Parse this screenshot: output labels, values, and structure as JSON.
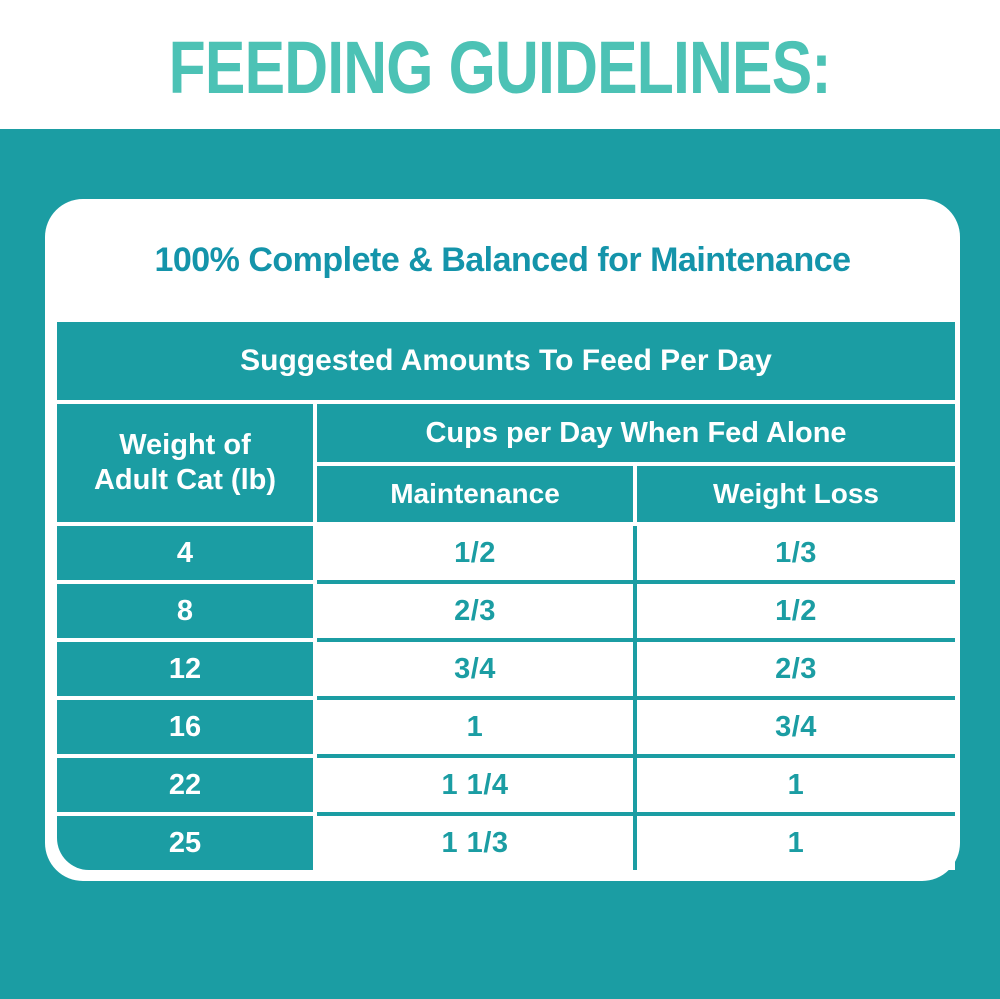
{
  "page": {
    "title": "FEEDING GUIDELINES:",
    "card_title": "100% Complete & Balanced for Maintenance"
  },
  "colors": {
    "page_teal": "#1b9da3",
    "heading_turquoise": "#4cc2b5",
    "card_title_teal": "#1494aa",
    "table_text_on_teal": "#ffffff",
    "table_value_teal": "#1b9da3"
  },
  "table": {
    "banner": "Suggested Amounts To Feed Per Day",
    "weight_header": "Weight of\nAdult Cat (lb)",
    "group_header": "Cups per Day When Fed Alone",
    "col_maintenance": "Maintenance",
    "col_weight_loss": "Weight Loss",
    "rows": [
      {
        "weight": "4",
        "maintenance": "1/2",
        "weight_loss": "1/3"
      },
      {
        "weight": "8",
        "maintenance": "2/3",
        "weight_loss": "1/2"
      },
      {
        "weight": "12",
        "maintenance": "3/4",
        "weight_loss": "2/3"
      },
      {
        "weight": "16",
        "maintenance": "1",
        "weight_loss": "3/4"
      },
      {
        "weight": "22",
        "maintenance": "1 1/4",
        "weight_loss": "1"
      },
      {
        "weight": "25",
        "maintenance": "1 1/3",
        "weight_loss": "1"
      }
    ]
  },
  "chart_data": {
    "type": "table",
    "title": "Suggested Amounts To Feed Per Day",
    "subtitle": "100% Complete & Balanced for Maintenance",
    "columns": [
      "Weight of Adult Cat (lb)",
      "Cups per Day When Fed Alone - Maintenance",
      "Cups per Day When Fed Alone - Weight Loss"
    ],
    "rows": [
      [
        "4",
        "1/2",
        "1/3"
      ],
      [
        "8",
        "2/3",
        "1/2"
      ],
      [
        "12",
        "3/4",
        "2/3"
      ],
      [
        "16",
        "1",
        "3/4"
      ],
      [
        "22",
        "1 1/4",
        "1"
      ],
      [
        "25",
        "1 1/3",
        "1"
      ]
    ]
  }
}
